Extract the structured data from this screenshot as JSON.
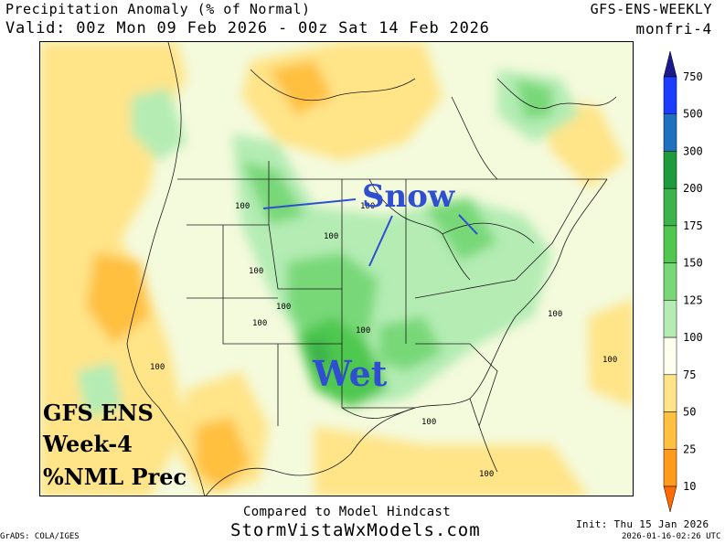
{
  "header": {
    "title": "Precipitation Anomaly (% of Normal)",
    "valid": "Valid: 00z Mon 09 Feb 2026 - 00z Sat 14 Feb 2026",
    "model": "GFS-ENS-WEEKLY",
    "run": "monfri-4"
  },
  "annotations": {
    "snow": "Snow",
    "wet": "Wet",
    "label_lines": [
      "GFS ENS",
      "Week-4",
      "%NML Prec"
    ]
  },
  "contour_label": "100",
  "colorbar": {
    "levels": [
      "750",
      "500",
      "300",
      "200",
      "175",
      "150",
      "125",
      "100",
      "75",
      "50",
      "25",
      "10"
    ],
    "colors": [
      "#1a1a8c",
      "#1c3cff",
      "#2070c0",
      "#1e9b3c",
      "#3cb44b",
      "#50c850",
      "#78d878",
      "#b4ecb4",
      "#fffff0",
      "#ffe488",
      "#ffc040",
      "#ff9a1a",
      "#ff6a00"
    ]
  },
  "footer": {
    "compared": "Compared to Model Hindcast",
    "site": "StormVistaWxModels.com",
    "grads": "GrADS: COLA/IGES",
    "init": "Init: Thu 15 Jan 2026",
    "stamp": "2026-01-16-02:26 UTC"
  }
}
